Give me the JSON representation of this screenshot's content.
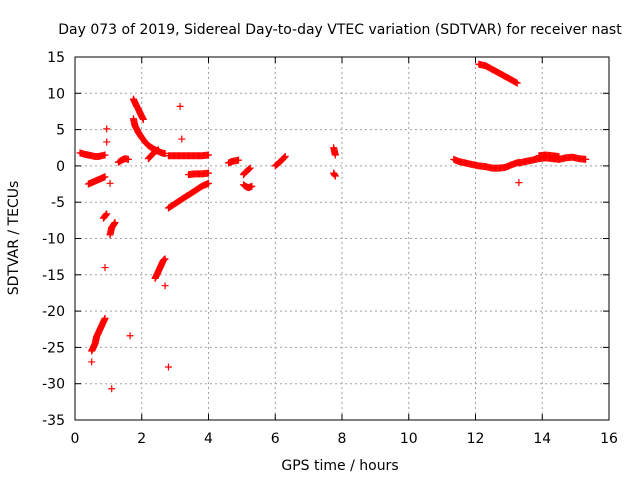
{
  "chart_data": {
    "type": "scatter",
    "title": "Day 073 of 2019, Sidereal Day-to-day VTEC variation (SDTVAR) for receiver nast",
    "xlabel": "GPS time / hours",
    "ylabel": "SDTVAR / TECUs",
    "xlim": [
      0,
      16
    ],
    "ylim": [
      -35,
      15
    ],
    "xticks": [
      0,
      2,
      4,
      6,
      8,
      10,
      12,
      14,
      16
    ],
    "yticks": [
      -35,
      -30,
      -25,
      -20,
      -15,
      -10,
      -5,
      0,
      5,
      10,
      15
    ],
    "grid": true,
    "marker": "+",
    "color": "#ff0000",
    "segments": [
      {
        "x": [
          0.15,
          0.28,
          0.4,
          0.5,
          0.6,
          0.7,
          0.8,
          0.9
        ],
        "y": [
          1.8,
          1.6,
          1.5,
          1.4,
          1.3,
          1.3,
          1.4,
          1.5
        ]
      },
      {
        "x": [
          0.4,
          0.5,
          0.6,
          0.7,
          0.8,
          0.9
        ],
        "y": [
          -2.5,
          -2.3,
          -2.1,
          -1.9,
          -1.7,
          -1.5
        ]
      },
      {
        "x": [
          0.85,
          0.9,
          0.95
        ],
        "y": [
          -7.2,
          -6.9,
          -6.6
        ]
      },
      {
        "x": [
          1.05,
          1.1,
          1.2
        ],
        "y": [
          -9.5,
          -8.5,
          -7.8
        ]
      },
      {
        "x": [
          0.5,
          0.55,
          0.6,
          0.65,
          0.7,
          0.75,
          0.8,
          0.85,
          0.9
        ],
        "y": [
          -25.5,
          -25,
          -24.5,
          -23.5,
          -23,
          -22.5,
          -22,
          -21.5,
          -21
        ]
      },
      {
        "x": [
          1.3,
          1.4,
          1.5,
          1.6
        ],
        "y": [
          0.5,
          0.8,
          1.0,
          0.9
        ]
      },
      {
        "x": [
          1.75,
          1.8,
          1.85,
          1.9,
          1.95,
          2.0,
          2.05
        ],
        "y": [
          9.2,
          8.7,
          8.2,
          7.8,
          7.3,
          6.8,
          6.4
        ]
      },
      {
        "x": [
          1.75,
          1.8,
          1.9,
          2.0,
          2.1,
          2.2,
          2.3,
          2.4,
          2.5,
          2.6,
          2.7
        ],
        "y": [
          6.5,
          5.5,
          4.6,
          3.9,
          3.3,
          2.8,
          2.5,
          2.2,
          2.0,
          1.8,
          1.7
        ]
      },
      {
        "x": [
          2.8,
          3.0,
          3.2,
          3.4,
          3.6,
          3.8,
          4.0
        ],
        "y": [
          1.4,
          1.4,
          1.4,
          1.4,
          1.4,
          1.4,
          1.5
        ]
      },
      {
        "x": [
          2.2,
          2.3,
          2.4,
          2.5
        ],
        "y": [
          1.0,
          1.5,
          2.0,
          2.2
        ]
      },
      {
        "x": [
          2.4,
          2.45,
          2.5,
          2.55,
          2.6,
          2.65,
          2.7
        ],
        "y": [
          -15.5,
          -15,
          -14.5,
          -14,
          -13.5,
          -13,
          -12.8
        ]
      },
      {
        "x": [
          2.8,
          3.0,
          3.2,
          3.4,
          3.6,
          3.8,
          4.0
        ],
        "y": [
          -5.8,
          -5.2,
          -4.6,
          -4.0,
          -3.4,
          -2.8,
          -2.4
        ]
      },
      {
        "x": [
          3.4,
          3.6,
          3.8,
          4.0
        ],
        "y": [
          -1.2,
          -1.1,
          -1.1,
          -1.0
        ]
      },
      {
        "x": [
          4.6,
          4.7,
          4.8,
          4.9
        ],
        "y": [
          0.4,
          0.6,
          0.7,
          0.8
        ]
      },
      {
        "x": [
          5.05,
          5.1,
          5.15,
          5.2,
          5.25
        ],
        "y": [
          -1.2,
          -0.9,
          -0.7,
          -0.5,
          -0.3
        ]
      },
      {
        "x": [
          5.05,
          5.1,
          5.2,
          5.3
        ],
        "y": [
          -2.6,
          -2.8,
          -3.0,
          -2.8
        ]
      },
      {
        "x": [
          6.0,
          6.1,
          6.2,
          6.3
        ],
        "y": [
          0.0,
          0.4,
          0.8,
          1.3
        ]
      },
      {
        "x": [
          7.75,
          7.8
        ],
        "y": [
          2.5,
          1.5
        ]
      },
      {
        "x": [
          7.75,
          7.8
        ],
        "y": [
          -1.0,
          -1.4
        ]
      },
      {
        "x": [
          12.1,
          12.3,
          12.5,
          12.7,
          12.9,
          13.1,
          13.25
        ],
        "y": [
          14.0,
          13.8,
          13.3,
          12.8,
          12.3,
          11.8,
          11.4
        ]
      },
      {
        "x": [
          11.35,
          11.5,
          11.7,
          11.9,
          12.1,
          12.3,
          12.5,
          12.7,
          12.9,
          13.1,
          13.3
        ],
        "y": [
          0.9,
          0.6,
          0.4,
          0.2,
          0.0,
          -0.1,
          -0.3,
          -0.3,
          -0.2,
          0.2,
          0.5
        ]
      },
      {
        "x": [
          13.3,
          13.5,
          13.7,
          13.9,
          14.1,
          14.3,
          14.5,
          14.7,
          14.9,
          15.1,
          15.3
        ],
        "y": [
          0.4,
          0.6,
          0.8,
          1.0,
          1.1,
          1.0,
          0.9,
          1.1,
          1.2,
          1.0,
          0.9
        ]
      },
      {
        "x": [
          13.9,
          14.1,
          14.3,
          14.5
        ],
        "y": [
          1.4,
          1.5,
          1.4,
          1.3
        ]
      }
    ],
    "outliers": {
      "x": [
        0.5,
        0.95,
        0.95,
        1.05,
        0.9,
        1.1,
        1.65,
        2.7,
        2.8,
        3.15,
        3.2,
        13.3
      ],
      "y": [
        -27,
        5.1,
        3.3,
        -2.4,
        -14,
        -30.7,
        -23.4,
        -16.5,
        -27.7,
        8.2,
        3.7,
        -2.3
      ]
    }
  }
}
